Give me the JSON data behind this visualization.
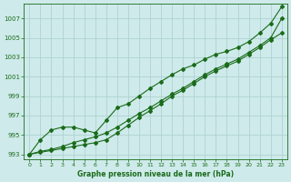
{
  "x": [
    0,
    1,
    2,
    3,
    4,
    5,
    6,
    7,
    8,
    9,
    10,
    11,
    12,
    13,
    14,
    15,
    16,
    17,
    18,
    19,
    20,
    21,
    22,
    23
  ],
  "line1": [
    993.0,
    993.3,
    993.5,
    993.8,
    994.2,
    994.5,
    994.8,
    995.2,
    995.8,
    996.5,
    997.2,
    997.8,
    998.5,
    999.2,
    999.8,
    1000.5,
    1001.2,
    1001.8,
    1002.3,
    1002.8,
    1003.5,
    1004.2,
    1005.0,
    1007.0
  ],
  "line2": [
    993.0,
    993.2,
    993.4,
    993.6,
    993.8,
    994.0,
    994.2,
    994.5,
    995.2,
    996.0,
    996.8,
    997.5,
    998.2,
    999.0,
    999.6,
    1000.3,
    1001.0,
    1001.6,
    1002.1,
    1002.6,
    1003.3,
    1004.0,
    1004.8,
    1005.5
  ],
  "line3": [
    993.0,
    994.5,
    995.5,
    995.8,
    995.8,
    995.5,
    995.2,
    996.5,
    997.8,
    998.2,
    999.0,
    999.8,
    1000.5,
    1001.2,
    1001.8,
    1002.2,
    1002.8,
    1003.3,
    1003.6,
    1004.0,
    1004.6,
    1005.5,
    1006.5,
    1008.2
  ],
  "line_color": "#1a6b1a",
  "marker": "D",
  "markersize": 2.0,
  "bg_color": "#ceeaea",
  "grid_color": "#aacece",
  "text_color": "#1a6b1a",
  "xlabel": "Graphe pression niveau de la mer (hPa)",
  "ylim_min": 992.5,
  "ylim_max": 1008.5,
  "xlim_min": -0.5,
  "xlim_max": 23.5,
  "yticks": [
    993,
    995,
    997,
    999,
    1001,
    1003,
    1005,
    1007
  ],
  "xticks": [
    0,
    1,
    2,
    3,
    4,
    5,
    6,
    7,
    8,
    9,
    10,
    11,
    12,
    13,
    14,
    15,
    16,
    17,
    18,
    19,
    20,
    21,
    22,
    23
  ],
  "linewidth": 0.8
}
